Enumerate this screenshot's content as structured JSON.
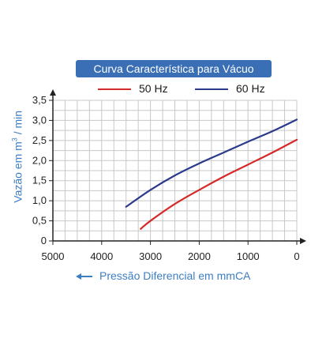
{
  "chart_data": {
    "type": "line",
    "title": "Curva Característica para Vácuo",
    "xlabel": "Pressão Diferencial em mmCA",
    "ylabel_prefix": "Vazão em m",
    "ylabel_sup": "3",
    "ylabel_suffix": " / min",
    "xlim": [
      5000,
      0
    ],
    "ylim": [
      0,
      3.5
    ],
    "x_ticks": [
      "5000",
      "4000",
      "3000",
      "2000",
      "1000",
      "0"
    ],
    "y_ticks": [
      "0",
      "0,5",
      "1,0",
      "1,5",
      "2,0",
      "2,5",
      "3,0",
      "3,5"
    ],
    "grid": true,
    "legend_position": "top",
    "series": [
      {
        "name": "50 Hz",
        "color": "#d42a2a",
        "x": [
          3200,
          3000,
          2500,
          2000,
          1500,
          1000,
          500,
          0
        ],
        "y": [
          0.3,
          0.5,
          0.92,
          1.27,
          1.6,
          1.9,
          2.2,
          2.52
        ]
      },
      {
        "name": "60 Hz",
        "color": "#2c3a8c",
        "x": [
          3500,
          3000,
          2500,
          2000,
          1500,
          1000,
          500,
          0
        ],
        "y": [
          0.85,
          1.27,
          1.63,
          1.93,
          2.2,
          2.47,
          2.73,
          3.02
        ]
      }
    ]
  },
  "colors": {
    "title_bg": "#3a6fb5",
    "label_blue": "#3d7ec2",
    "grid": "#c8c8c8"
  }
}
